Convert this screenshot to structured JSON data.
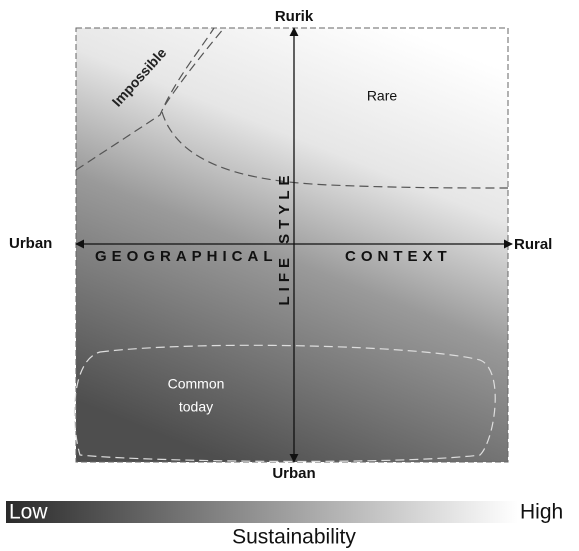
{
  "axes": {
    "top": "Rurik",
    "bottom": "Urban",
    "left": "Urban",
    "right": "Rural",
    "horizontal_label": [
      "GEOGRAPHICAL",
      "CONTEXT"
    ],
    "vertical_label": "LIFE STYLE"
  },
  "regions": {
    "impossible": "Impossible",
    "rare": "Rare",
    "common": [
      "Common",
      "today"
    ]
  },
  "scale": {
    "low": "Low",
    "high": "High",
    "label": "Sustainability"
  }
}
